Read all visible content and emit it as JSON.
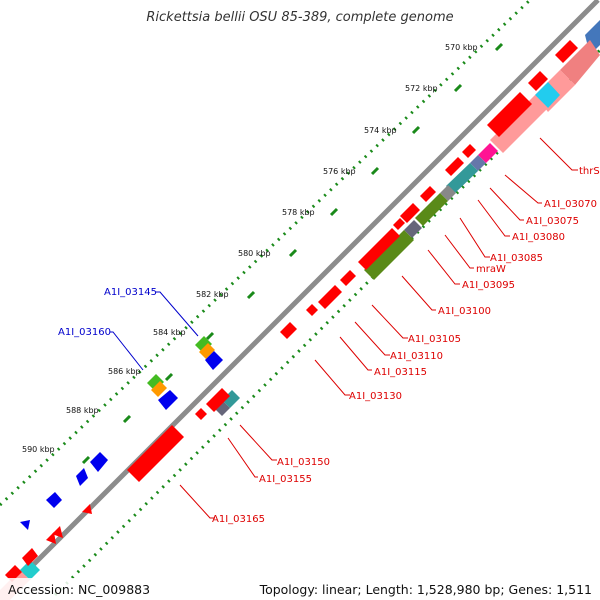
{
  "title": "Rickettsia bellii OSU 85-389, complete genome",
  "footer": {
    "accession": "Accession: NC_009883",
    "topology": "Topology: linear; Length: 1,528,980 bp; Genes: 1,511"
  },
  "scale_labels": [
    "570 kbp",
    "572 kbp",
    "574 kbp",
    "576 kbp",
    "578 kbp",
    "580 kbp",
    "582 kbp",
    "584 kbp",
    "586 kbp",
    "588 kbp",
    "590 kbp"
  ],
  "gene_labels_forward": [
    "A1I_03145",
    "A1I_03160"
  ],
  "gene_labels_reverse": [
    "thrS",
    "A1I_03070",
    "A1I_03075",
    "A1I_03080",
    "A1I_03085",
    "mraW",
    "A1I_03095",
    "A1I_03100",
    "A1I_03105",
    "A1I_03110",
    "A1I_03115",
    "A1I_03130",
    "A1I_03150",
    "A1I_03155",
    "A1I_03165"
  ],
  "colors": {
    "axis": "#8c8c8c",
    "tick_dots": "#1a8a1a",
    "reverse_gene": "#ff0000",
    "reverse_gene_pale": "#ff9a9a",
    "forward_gene": "#0000ee",
    "reverse_label": "#dd0000",
    "forward_label": "#0000cc",
    "magenta": "#ff1493",
    "cyan": "#22ccee",
    "green": "#44bb22",
    "olive": "#5a8a18",
    "orange": "#ff9900",
    "slate": "#66667a",
    "teal": "#339999"
  }
}
